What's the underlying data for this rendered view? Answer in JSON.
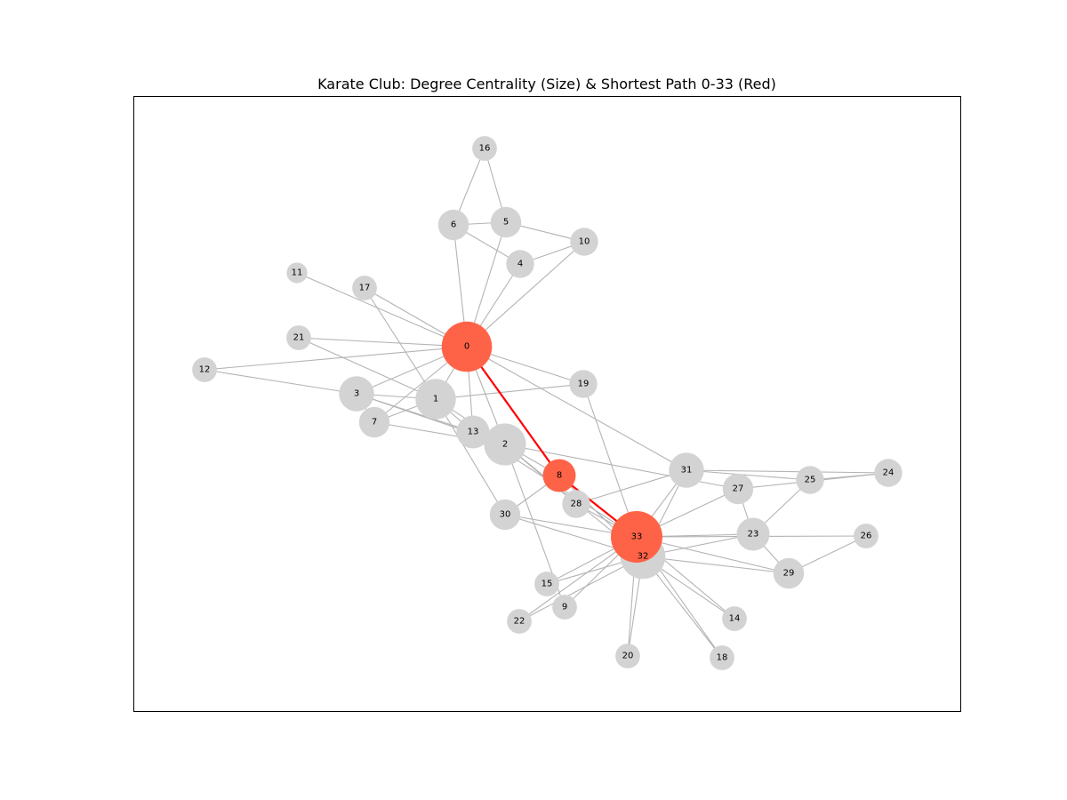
{
  "title": "Karate Club: Degree Centrality (Size) & Shortest Path 0-33 (Red)",
  "colors": {
    "node_default": "#d3d3d3",
    "node_path": "#ff6347",
    "edge_default": "#b4b4b4",
    "edge_path": "#ff0000",
    "frame": "#000000",
    "label": "#000000"
  },
  "graph": {
    "shortest_path": [
      0,
      8,
      33
    ],
    "nodes": [
      {
        "id": 0,
        "label": "0",
        "degree": 16
      },
      {
        "id": 1,
        "label": "1",
        "degree": 9
      },
      {
        "id": 2,
        "label": "2",
        "degree": 10
      },
      {
        "id": 3,
        "label": "3",
        "degree": 6
      },
      {
        "id": 4,
        "label": "4",
        "degree": 3
      },
      {
        "id": 5,
        "label": "5",
        "degree": 4
      },
      {
        "id": 6,
        "label": "6",
        "degree": 4
      },
      {
        "id": 7,
        "label": "7",
        "degree": 4
      },
      {
        "id": 8,
        "label": "8",
        "degree": 5
      },
      {
        "id": 9,
        "label": "9",
        "degree": 2
      },
      {
        "id": 10,
        "label": "10",
        "degree": 3
      },
      {
        "id": 11,
        "label": "11",
        "degree": 1
      },
      {
        "id": 12,
        "label": "12",
        "degree": 2
      },
      {
        "id": 13,
        "label": "13",
        "degree": 5
      },
      {
        "id": 14,
        "label": "14",
        "degree": 2
      },
      {
        "id": 15,
        "label": "15",
        "degree": 2
      },
      {
        "id": 16,
        "label": "16",
        "degree": 2
      },
      {
        "id": 17,
        "label": "17",
        "degree": 2
      },
      {
        "id": 18,
        "label": "18",
        "degree": 2
      },
      {
        "id": 19,
        "label": "19",
        "degree": 3
      },
      {
        "id": 20,
        "label": "20",
        "degree": 2
      },
      {
        "id": 21,
        "label": "21",
        "degree": 2
      },
      {
        "id": 22,
        "label": "22",
        "degree": 2
      },
      {
        "id": 23,
        "label": "23",
        "degree": 5
      },
      {
        "id": 24,
        "label": "24",
        "degree": 3
      },
      {
        "id": 25,
        "label": "25",
        "degree": 3
      },
      {
        "id": 26,
        "label": "26",
        "degree": 2
      },
      {
        "id": 27,
        "label": "27",
        "degree": 4
      },
      {
        "id": 28,
        "label": "28",
        "degree": 3
      },
      {
        "id": 29,
        "label": "29",
        "degree": 4
      },
      {
        "id": 30,
        "label": "30",
        "degree": 4
      },
      {
        "id": 31,
        "label": "31",
        "degree": 6
      },
      {
        "id": 32,
        "label": "32",
        "degree": 12
      },
      {
        "id": 33,
        "label": "33",
        "degree": 17
      }
    ],
    "edges": [
      [
        0,
        1
      ],
      [
        0,
        2
      ],
      [
        0,
        3
      ],
      [
        0,
        4
      ],
      [
        0,
        5
      ],
      [
        0,
        6
      ],
      [
        0,
        7
      ],
      [
        0,
        8
      ],
      [
        0,
        10
      ],
      [
        0,
        11
      ],
      [
        0,
        12
      ],
      [
        0,
        13
      ],
      [
        0,
        17
      ],
      [
        0,
        19
      ],
      [
        0,
        21
      ],
      [
        0,
        31
      ],
      [
        1,
        2
      ],
      [
        1,
        3
      ],
      [
        1,
        7
      ],
      [
        1,
        13
      ],
      [
        1,
        17
      ],
      [
        1,
        19
      ],
      [
        1,
        21
      ],
      [
        1,
        30
      ],
      [
        2,
        3
      ],
      [
        2,
        7
      ],
      [
        2,
        8
      ],
      [
        2,
        9
      ],
      [
        2,
        13
      ],
      [
        2,
        27
      ],
      [
        2,
        28
      ],
      [
        2,
        32
      ],
      [
        3,
        7
      ],
      [
        3,
        12
      ],
      [
        3,
        13
      ],
      [
        4,
        6
      ],
      [
        4,
        10
      ],
      [
        5,
        6
      ],
      [
        5,
        10
      ],
      [
        5,
        16
      ],
      [
        6,
        16
      ],
      [
        8,
        30
      ],
      [
        8,
        32
      ],
      [
        8,
        33
      ],
      [
        9,
        33
      ],
      [
        13,
        33
      ],
      [
        14,
        32
      ],
      [
        14,
        33
      ],
      [
        15,
        32
      ],
      [
        15,
        33
      ],
      [
        18,
        32
      ],
      [
        18,
        33
      ],
      [
        19,
        33
      ],
      [
        20,
        32
      ],
      [
        20,
        33
      ],
      [
        22,
        32
      ],
      [
        22,
        33
      ],
      [
        23,
        25
      ],
      [
        23,
        27
      ],
      [
        23,
        29
      ],
      [
        23,
        32
      ],
      [
        23,
        33
      ],
      [
        24,
        25
      ],
      [
        24,
        27
      ],
      [
        24,
        31
      ],
      [
        25,
        31
      ],
      [
        26,
        29
      ],
      [
        26,
        33
      ],
      [
        27,
        33
      ],
      [
        28,
        31
      ],
      [
        28,
        33
      ],
      [
        29,
        32
      ],
      [
        29,
        33
      ],
      [
        30,
        32
      ],
      [
        30,
        33
      ],
      [
        31,
        32
      ],
      [
        31,
        33
      ],
      [
        32,
        33
      ]
    ]
  }
}
